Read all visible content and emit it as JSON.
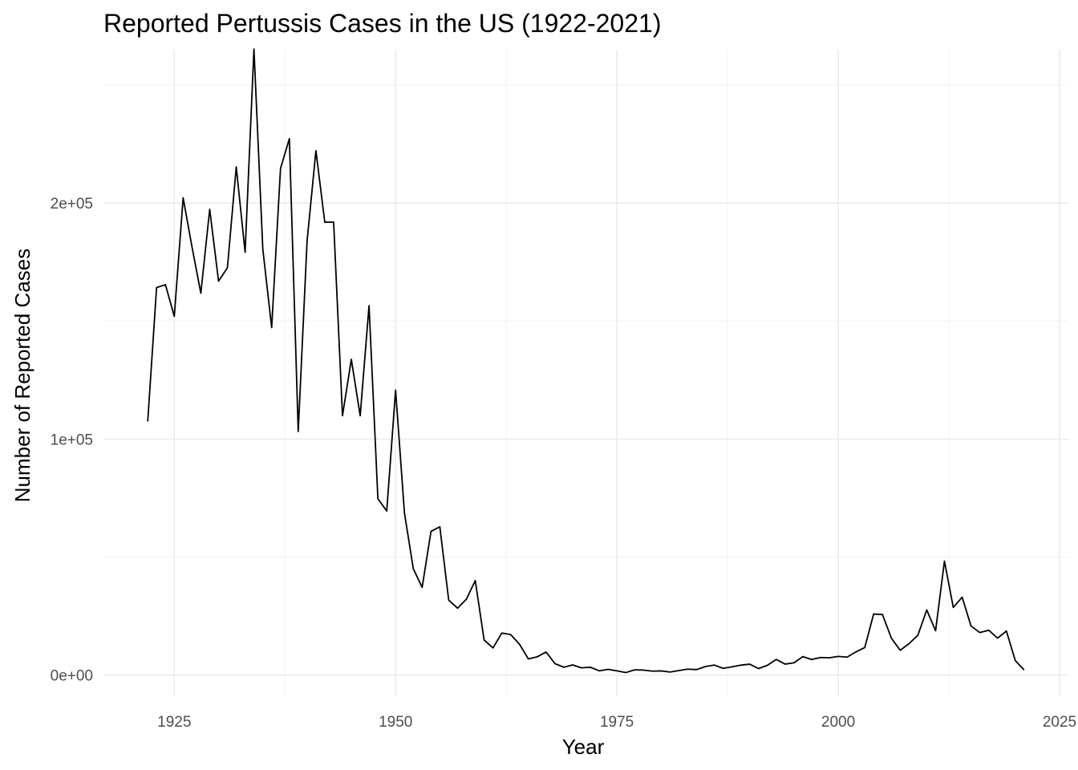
{
  "chart_data": {
    "type": "line",
    "title": "Reported Pertussis Cases in the US (1922-2021)",
    "xlabel": "Year",
    "ylabel": "Number of Reported Cases",
    "xlim": [
      1917,
      2026
    ],
    "ylim": [
      -9000,
      265000
    ],
    "x_ticks": [
      1925,
      1950,
      1975,
      2000,
      2025
    ],
    "x_tick_labels": [
      "1925",
      "1950",
      "1975",
      "2000",
      "2025"
    ],
    "y_ticks": [
      0,
      100000,
      200000
    ],
    "y_tick_labels": [
      "0e+00",
      "1e+05",
      "2e+05"
    ],
    "grid": true,
    "legend": "none",
    "line_color": "#000000",
    "x": [
      1922,
      1923,
      1924,
      1925,
      1926,
      1927,
      1928,
      1929,
      1930,
      1931,
      1932,
      1933,
      1934,
      1935,
      1936,
      1937,
      1938,
      1939,
      1940,
      1941,
      1942,
      1943,
      1944,
      1945,
      1946,
      1947,
      1948,
      1949,
      1950,
      1951,
      1952,
      1953,
      1954,
      1955,
      1956,
      1957,
      1958,
      1959,
      1960,
      1961,
      1962,
      1963,
      1964,
      1965,
      1966,
      1967,
      1968,
      1969,
      1970,
      1971,
      1972,
      1973,
      1974,
      1975,
      1976,
      1977,
      1978,
      1979,
      1980,
      1981,
      1982,
      1983,
      1984,
      1985,
      1986,
      1987,
      1988,
      1989,
      1990,
      1991,
      1992,
      1993,
      1994,
      1995,
      1996,
      1997,
      1998,
      1999,
      2000,
      2001,
      2002,
      2003,
      2004,
      2005,
      2006,
      2007,
      2008,
      2009,
      2010,
      2011,
      2012,
      2013,
      2014,
      2015,
      2016,
      2017,
      2018,
      2019,
      2020,
      2021
    ],
    "y": [
      107473,
      164191,
      165418,
      152003,
      202210,
      181411,
      161799,
      197371,
      166914,
      172559,
      215343,
      179135,
      265269,
      180518,
      147237,
      214652,
      227319,
      103188,
      183866,
      222202,
      191890,
      191943,
      109873,
      133792,
      109860,
      156517,
      74715,
      69479,
      120718,
      68687,
      45030,
      37129,
      60886,
      62786,
      31732,
      28295,
      32148,
      40005,
      14809,
      11468,
      17749,
      17135,
      13005,
      6799,
      7717,
      9718,
      4810,
      3285,
      4249,
      3036,
      3287,
      1759,
      2402,
      1738,
      1010,
      2177,
      2063,
      1623,
      1730,
      1248,
      1895,
      2463,
      2276,
      3589,
      4195,
      2823,
      3450,
      4157,
      4570,
      2719,
      4083,
      6586,
      4617,
      5137,
      7796,
      6564,
      7405,
      7288,
      7867,
      7580,
      9771,
      11647,
      25827,
      25616,
      15632,
      10454,
      13278,
      16858,
      27550,
      18719,
      48277,
      28639,
      32971,
      20762,
      17972,
      18975,
      15609,
      18617,
      6124,
      2116
    ]
  }
}
